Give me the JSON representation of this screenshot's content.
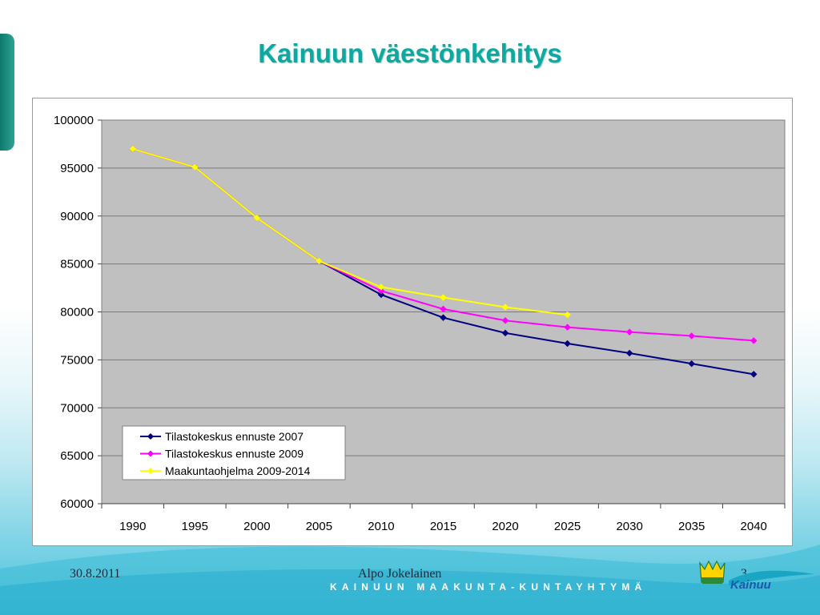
{
  "slide": {
    "title": "Kainuun väestönkehitys",
    "footer_date": "30.8.2011",
    "footer_author": "Alpo Jokelainen",
    "page_number": "3",
    "brand_strip": "KAINUUN MAAKUNTA-KUNTAYHTYMÄ",
    "logo_text": "Kainuu",
    "colors": {
      "title": "#0da9a0",
      "plot_background": "#c0c0c0",
      "accent": "#0b7a6d"
    }
  },
  "chart_data": {
    "type": "line",
    "title": "",
    "xlabel": "",
    "ylabel": "",
    "x": [
      1990,
      1995,
      2000,
      2005,
      2010,
      2015,
      2020,
      2025,
      2030,
      2035,
      2040
    ],
    "x_tick_labels": [
      "1990",
      "1995",
      "2000",
      "2005",
      "2010",
      "2015",
      "2020",
      "2025",
      "2030",
      "2035",
      "2040"
    ],
    "ylim": [
      60000,
      100000
    ],
    "y_ticks": [
      60000,
      65000,
      70000,
      75000,
      80000,
      85000,
      90000,
      95000,
      100000
    ],
    "y_tick_labels": [
      "60000",
      "65000",
      "70000",
      "75000",
      "80000",
      "85000",
      "90000",
      "95000",
      "100000"
    ],
    "grid": true,
    "legend_position": "lower-left",
    "series": [
      {
        "name": "Tilastokeskus ennuste 2007",
        "color": "#000080",
        "marker": "diamond",
        "values": [
          97000,
          95100,
          89800,
          85300,
          81800,
          79400,
          77800,
          76700,
          75700,
          74600,
          73500
        ]
      },
      {
        "name": "Tilastokeskus ennuste 2009",
        "color": "#ff00ff",
        "marker": "diamond",
        "values": [
          97000,
          95100,
          89800,
          85300,
          82200,
          80300,
          79100,
          78400,
          77900,
          77500,
          77000
        ]
      },
      {
        "name": "Maakuntaohjelma 2009-2014",
        "color": "#ffff00",
        "marker": "diamond",
        "values": [
          97000,
          95100,
          89800,
          85300,
          82600,
          81500,
          80500,
          79700,
          null,
          null,
          null
        ]
      }
    ]
  }
}
